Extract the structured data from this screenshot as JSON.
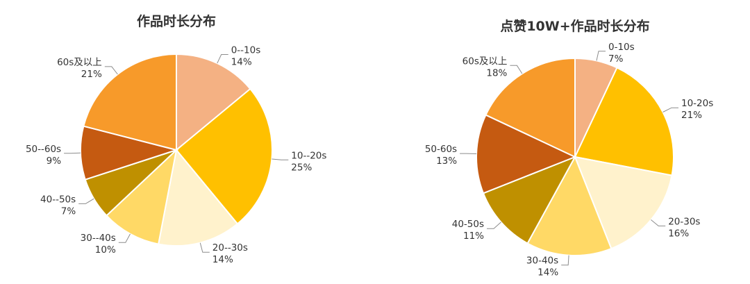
{
  "chart_data": [
    {
      "type": "pie",
      "title": "作品时长分布",
      "categories": [
        "0--10s",
        "10--20s",
        "20--30s",
        "30--40s",
        "40--50s",
        "50--60s",
        "60s及以上"
      ],
      "values": [
        14,
        25,
        14,
        10,
        7,
        9,
        21
      ],
      "value_labels": [
        "14%",
        "25%",
        "14%",
        "10%",
        "7%",
        "9%",
        "21%"
      ],
      "colors": [
        "#F4B183",
        "#FFC000",
        "#FFF2CC",
        "#FFD966",
        "#BF9000",
        "#C55A11",
        "#F79A2A"
      ]
    },
    {
      "type": "pie",
      "title": "点赞10W+作品时长分布",
      "categories": [
        "0-10s",
        "10-20s",
        "20-30s",
        "30-40s",
        "40-50s",
        "50-60s",
        "60s及以上"
      ],
      "values": [
        7,
        21,
        16,
        14,
        11,
        13,
        18
      ],
      "value_labels": [
        "7%",
        "21%",
        "16%",
        "14%",
        "11%",
        "13%",
        "18%"
      ],
      "colors": [
        "#F4B183",
        "#FFC000",
        "#FFF2CC",
        "#FFD966",
        "#BF9000",
        "#C55A11",
        "#F79A2A"
      ]
    }
  ]
}
